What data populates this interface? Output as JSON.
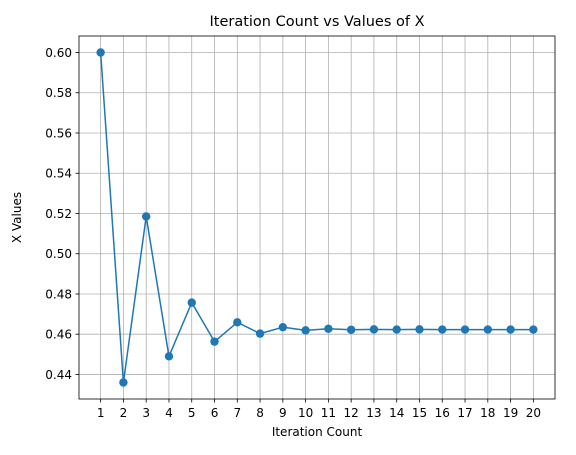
{
  "chart_data": {
    "type": "line",
    "title": "Iteration Count vs Values of X",
    "xlabel": "Iteration Count",
    "ylabel": "X Values",
    "x": [
      1,
      2,
      3,
      4,
      5,
      6,
      7,
      8,
      9,
      10,
      11,
      12,
      13,
      14,
      15,
      16,
      17,
      18,
      19,
      20
    ],
    "series": [
      {
        "values": [
          0.6,
          0.436,
          0.5185,
          0.449,
          0.4757,
          0.4563,
          0.4659,
          0.4603,
          0.4635,
          0.4619,
          0.4627,
          0.4622,
          0.4624,
          0.4623,
          0.4624,
          0.4623,
          0.4623,
          0.4623,
          0.4623,
          0.4623
        ],
        "color": "#1f77b4",
        "marker": "circle"
      }
    ],
    "xlim": [
      0.05,
      20.95
    ],
    "ylim": [
      0.4278,
      0.6082
    ],
    "xticks": [
      "1",
      "2",
      "3",
      "4",
      "5",
      "6",
      "7",
      "8",
      "9",
      "10",
      "11",
      "12",
      "13",
      "14",
      "15",
      "16",
      "17",
      "18",
      "19",
      "20"
    ],
    "yticks": [
      "0.44",
      "0.46",
      "0.48",
      "0.50",
      "0.52",
      "0.54",
      "0.56",
      "0.58",
      "0.60"
    ],
    "grid": true,
    "colors": {
      "line": "#1f77b4",
      "grid": "#b0b0b0",
      "axes": "#000000"
    }
  }
}
